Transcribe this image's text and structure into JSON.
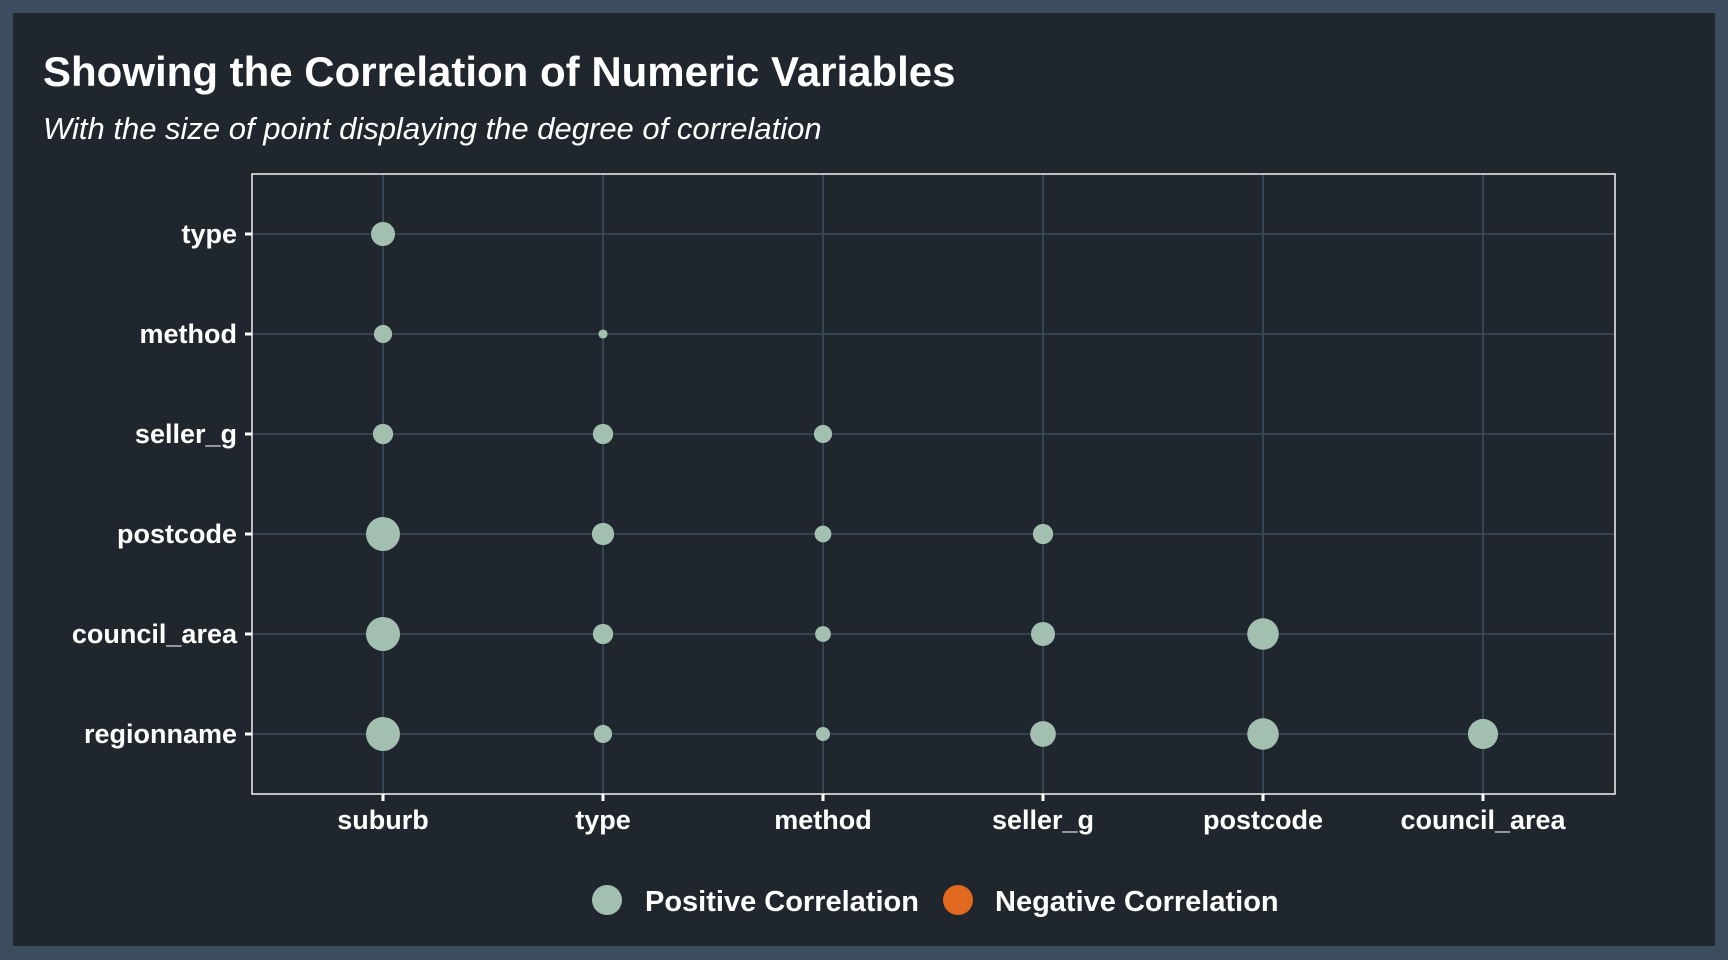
{
  "chart_data": {
    "type": "scatter",
    "title": "Showing the Correlation of Numeric Variables",
    "subtitle": "With the size of point displaying the degree of correlation",
    "x_categories": [
      "suburb",
      "type",
      "method",
      "seller_g",
      "postcode",
      "council_area"
    ],
    "y_categories": [
      "regionname",
      "council_area",
      "postcode",
      "seller_g",
      "method",
      "type"
    ],
    "size_legend": "degree of correlation (point size)",
    "points": [
      {
        "x": "suburb",
        "y": "type",
        "size": 0.35,
        "sign": "positive"
      },
      {
        "x": "suburb",
        "y": "method",
        "size": 0.2,
        "sign": "positive"
      },
      {
        "x": "suburb",
        "y": "seller_g",
        "size": 0.25,
        "sign": "positive"
      },
      {
        "x": "suburb",
        "y": "postcode",
        "size": 0.7,
        "sign": "positive"
      },
      {
        "x": "suburb",
        "y": "council_area",
        "size": 0.7,
        "sign": "positive"
      },
      {
        "x": "suburb",
        "y": "regionname",
        "size": 0.7,
        "sign": "positive"
      },
      {
        "x": "type",
        "y": "method",
        "size": 0.05,
        "sign": "positive"
      },
      {
        "x": "type",
        "y": "seller_g",
        "size": 0.25,
        "sign": "positive"
      },
      {
        "x": "type",
        "y": "postcode",
        "size": 0.3,
        "sign": "positive"
      },
      {
        "x": "type",
        "y": "council_area",
        "size": 0.25,
        "sign": "positive"
      },
      {
        "x": "type",
        "y": "regionname",
        "size": 0.2,
        "sign": "positive"
      },
      {
        "x": "method",
        "y": "seller_g",
        "size": 0.2,
        "sign": "positive"
      },
      {
        "x": "method",
        "y": "postcode",
        "size": 0.17,
        "sign": "positive"
      },
      {
        "x": "method",
        "y": "council_area",
        "size": 0.15,
        "sign": "positive"
      },
      {
        "x": "method",
        "y": "regionname",
        "size": 0.12,
        "sign": "positive"
      },
      {
        "x": "seller_g",
        "y": "postcode",
        "size": 0.25,
        "sign": "positive"
      },
      {
        "x": "seller_g",
        "y": "council_area",
        "size": 0.35,
        "sign": "positive"
      },
      {
        "x": "seller_g",
        "y": "regionname",
        "size": 0.4,
        "sign": "positive"
      },
      {
        "x": "postcode",
        "y": "council_area",
        "size": 0.6,
        "sign": "positive"
      },
      {
        "x": "postcode",
        "y": "regionname",
        "size": 0.6,
        "sign": "positive"
      },
      {
        "x": "council_area",
        "y": "regionname",
        "size": 0.55,
        "sign": "positive"
      }
    ],
    "grid": true,
    "legend": {
      "position": "bottom",
      "entries": [
        {
          "label": "Positive Correlation",
          "color": "#a3bfb0"
        },
        {
          "label": "Negative Correlation",
          "color": "#e0691f"
        }
      ]
    }
  },
  "colors": {
    "background_outer": "#3b4d5e",
    "panel": "#1f262e",
    "grid": "#3b4d5e",
    "positive": "#a3bfb0",
    "negative": "#e0691f",
    "text": "#ffffff"
  }
}
